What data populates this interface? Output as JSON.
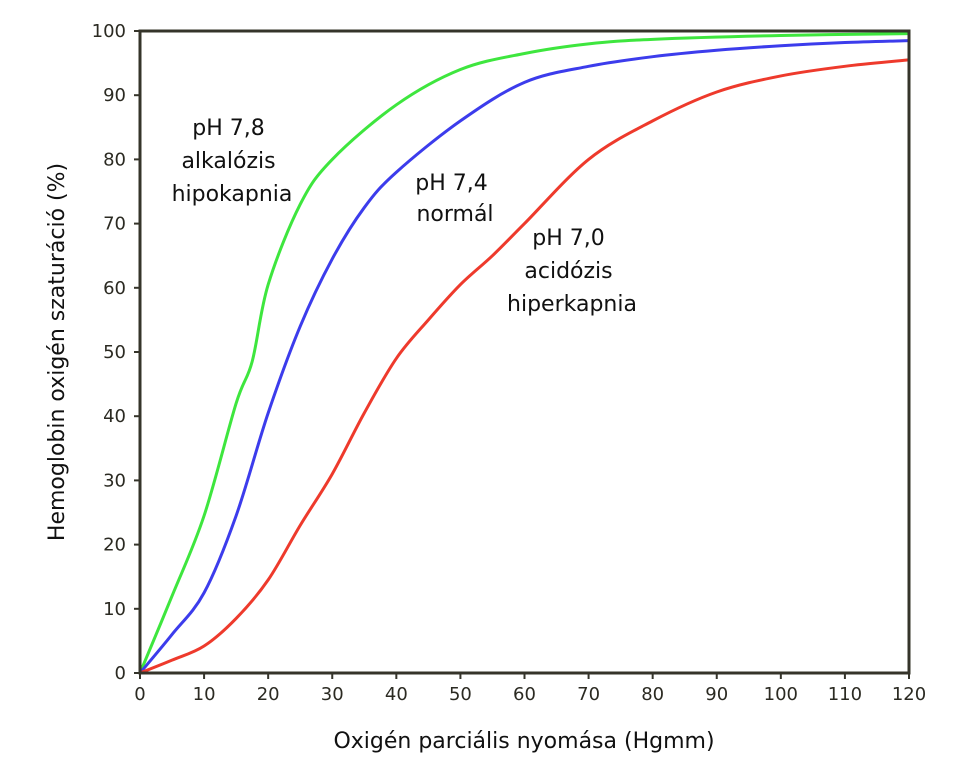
{
  "chart_data": {
    "type": "line",
    "title": "",
    "xlabel": "Oxigén parciális nyomása (Hgmm)",
    "ylabel": "Hemoglobin oxigén szaturáció (%)",
    "xlim": [
      0,
      120
    ],
    "ylim": [
      0,
      100
    ],
    "xticks": [
      0,
      10,
      20,
      30,
      40,
      50,
      60,
      70,
      80,
      90,
      100,
      110,
      120
    ],
    "yticks": [
      0,
      10,
      20,
      30,
      40,
      50,
      60,
      70,
      80,
      90,
      100
    ],
    "grid": false,
    "legend": "none",
    "series": [
      {
        "name": "pH 7,8 alkalózis hipokapnia",
        "color": "#3ee63e",
        "x": [
          0,
          5,
          10,
          15,
          17.5,
          20,
          25,
          30,
          40,
          50,
          60,
          70,
          80,
          100,
          120
        ],
        "y": [
          0,
          12,
          24.5,
          42,
          48.5,
          60.5,
          73,
          80,
          88.5,
          94,
          96.5,
          98,
          98.7,
          99.3,
          99.6
        ]
      },
      {
        "name": "pH 7,4 normál",
        "color": "#3c3cec",
        "x": [
          0,
          5,
          10,
          15,
          20,
          25,
          30,
          35,
          40,
          50,
          60,
          70,
          80,
          90,
          100,
          110,
          120
        ],
        "y": [
          0,
          6,
          12.5,
          24.5,
          40.5,
          54,
          64.5,
          72.5,
          78,
          86,
          92,
          94.5,
          96,
          97,
          97.7,
          98.2,
          98.5
        ]
      },
      {
        "name": "pH 7,0 acidózis hiperkapnia",
        "color": "#ee3a2c",
        "x": [
          0,
          5,
          10,
          15,
          20,
          25,
          30,
          35,
          40,
          45,
          50,
          55,
          60,
          70,
          80,
          90,
          100,
          110,
          120
        ],
        "y": [
          0,
          2,
          4.2,
          8.5,
          14.5,
          23,
          31,
          40.5,
          49,
          55,
          60.5,
          65,
          70,
          80,
          86,
          90.5,
          93,
          94.5,
          95.5
        ]
      }
    ],
    "annotations": [
      {
        "lines": [
          "pH 7,8",
          "alkalózis",
          "hipokapnia"
        ]
      },
      {
        "lines": [
          "pH 7,4",
          "normál"
        ]
      },
      {
        "lines": [
          "pH 7,0",
          "acidózis",
          "hiperkapnia"
        ]
      }
    ],
    "frame_color": "#35342a"
  }
}
